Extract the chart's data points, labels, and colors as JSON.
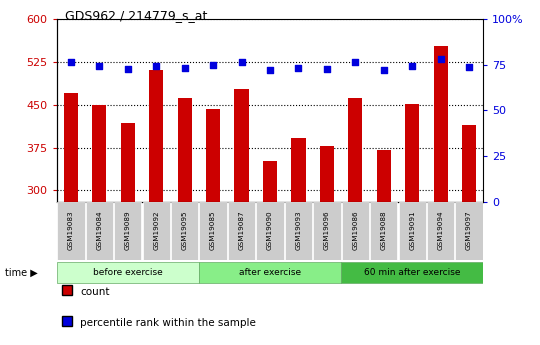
{
  "title": "GDS962 / 214779_s_at",
  "samples": [
    "GSM19083",
    "GSM19084",
    "GSM19089",
    "GSM19092",
    "GSM19095",
    "GSM19085",
    "GSM19087",
    "GSM19090",
    "GSM19093",
    "GSM19096",
    "GSM19086",
    "GSM19088",
    "GSM19091",
    "GSM19094",
    "GSM19097"
  ],
  "groups": [
    {
      "label": "before exercise",
      "start": 0,
      "end": 5
    },
    {
      "label": "after exercise",
      "start": 5,
      "end": 10
    },
    {
      "label": "60 min after exercise",
      "start": 10,
      "end": 15
    }
  ],
  "counts": [
    470,
    450,
    418,
    510,
    462,
    442,
    478,
    352,
    392,
    378,
    462,
    370,
    452,
    553,
    415
  ],
  "percentile_left": [
    525,
    518,
    513,
    518,
    515,
    519,
    525,
    510,
    515,
    512,
    525,
    510,
    518,
    530,
    516
  ],
  "ylim_left": [
    280,
    600
  ],
  "ylim_right": [
    0,
    100
  ],
  "yticks_left": [
    300,
    375,
    450,
    525,
    600
  ],
  "yticks_right": [
    0,
    25,
    50,
    75,
    100
  ],
  "bar_color": "#cc0000",
  "dot_color": "#0000dd",
  "bg_color": "#ffffff",
  "tick_color_left": "#cc0000",
  "tick_color_right": "#0000dd",
  "group_colors": [
    "#ccffcc",
    "#88ee88",
    "#44bb44"
  ],
  "sample_bg": "#cccccc",
  "bar_width": 0.5
}
